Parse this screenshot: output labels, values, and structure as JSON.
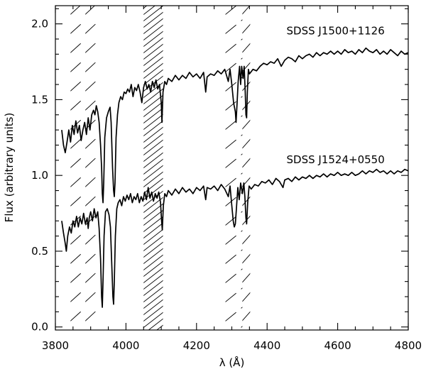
{
  "chart_data": {
    "type": "line",
    "xlabel": "λ (Å)",
    "ylabel": "Flux (arbitrary units)",
    "xlim": [
      3800,
      4800
    ],
    "ylim": [
      -0.02,
      2.12
    ],
    "xticks": [
      3800,
      4000,
      4200,
      4400,
      4600,
      4800
    ],
    "xtick_labels": [
      "3800",
      "4000",
      "4200",
      "4400",
      "4600",
      "4800"
    ],
    "yticks": [
      0.0,
      0.5,
      1.0,
      1.5,
      2.0
    ],
    "ytick_labels": [
      "0.0",
      "0.5",
      "1.0",
      "1.5",
      "2.0"
    ],
    "grid": false,
    "hatched_regions": [
      {
        "x": [
          3843,
          3880
        ],
        "hatch": "wide"
      },
      {
        "x": [
          3885,
          3920
        ],
        "hatch": "wide"
      },
      {
        "x": [
          4050,
          4105
        ],
        "hatch": "dense"
      },
      {
        "x": [
          4282,
          4330
        ],
        "hatch": "wide"
      },
      {
        "x": [
          4330,
          4352
        ],
        "hatch": "wide"
      }
    ],
    "annotations": [
      {
        "text": "SDSS J1500+1126",
        "x": 4455,
        "y": 1.93
      },
      {
        "text": "SDSS J1524+0550",
        "x": 4455,
        "y": 1.08
      }
    ],
    "series": [
      {
        "color": "#000000",
        "points": [
          [
            3818,
            1.3
          ],
          [
            3823,
            1.2
          ],
          [
            3828,
            1.15
          ],
          [
            3833,
            1.22
          ],
          [
            3838,
            1.3
          ],
          [
            3843,
            1.22
          ],
          [
            3848,
            1.33
          ],
          [
            3853,
            1.27
          ],
          [
            3858,
            1.36
          ],
          [
            3863,
            1.28
          ],
          [
            3868,
            1.33
          ],
          [
            3873,
            1.23
          ],
          [
            3878,
            1.3
          ],
          [
            3883,
            1.35
          ],
          [
            3888,
            1.27
          ],
          [
            3893,
            1.38
          ],
          [
            3898,
            1.3
          ],
          [
            3903,
            1.4
          ],
          [
            3908,
            1.43
          ],
          [
            3912,
            1.4
          ],
          [
            3916,
            1.46
          ],
          [
            3920,
            1.42
          ],
          [
            3924,
            1.35
          ],
          [
            3928,
            1.2
          ],
          [
            3931,
            1.05
          ],
          [
            3933,
            0.88
          ],
          [
            3935,
            0.82
          ],
          [
            3937,
            0.95
          ],
          [
            3940,
            1.25
          ],
          [
            3945,
            1.38
          ],
          [
            3950,
            1.42
          ],
          [
            3955,
            1.45
          ],
          [
            3958,
            1.35
          ],
          [
            3962,
            1.05
          ],
          [
            3965,
            0.9
          ],
          [
            3967,
            0.86
          ],
          [
            3969,
            0.95
          ],
          [
            3972,
            1.25
          ],
          [
            3976,
            1.4
          ],
          [
            3980,
            1.48
          ],
          [
            3985,
            1.52
          ],
          [
            3990,
            1.5
          ],
          [
            3995,
            1.55
          ],
          [
            4000,
            1.54
          ],
          [
            4005,
            1.57
          ],
          [
            4010,
            1.55
          ],
          [
            4015,
            1.6
          ],
          [
            4020,
            1.52
          ],
          [
            4025,
            1.58
          ],
          [
            4030,
            1.56
          ],
          [
            4035,
            1.6
          ],
          [
            4040,
            1.55
          ],
          [
            4045,
            1.48
          ],
          [
            4050,
            1.58
          ],
          [
            4055,
            1.62
          ],
          [
            4060,
            1.57
          ],
          [
            4065,
            1.6
          ],
          [
            4070,
            1.55
          ],
          [
            4075,
            1.62
          ],
          [
            4080,
            1.58
          ],
          [
            4085,
            1.63
          ],
          [
            4090,
            1.57
          ],
          [
            4095,
            1.6
          ],
          [
            4100,
            1.48
          ],
          [
            4102,
            1.35
          ],
          [
            4105,
            1.55
          ],
          [
            4110,
            1.62
          ],
          [
            4115,
            1.6
          ],
          [
            4120,
            1.64
          ],
          [
            4130,
            1.62
          ],
          [
            4140,
            1.66
          ],
          [
            4150,
            1.63
          ],
          [
            4160,
            1.66
          ],
          [
            4170,
            1.64
          ],
          [
            4180,
            1.68
          ],
          [
            4190,
            1.65
          ],
          [
            4200,
            1.67
          ],
          [
            4210,
            1.64
          ],
          [
            4220,
            1.68
          ],
          [
            4226,
            1.55
          ],
          [
            4230,
            1.65
          ],
          [
            4240,
            1.67
          ],
          [
            4250,
            1.66
          ],
          [
            4260,
            1.69
          ],
          [
            4270,
            1.67
          ],
          [
            4280,
            1.7
          ],
          [
            4290,
            1.62
          ],
          [
            4295,
            1.7
          ],
          [
            4300,
            1.6
          ],
          [
            4305,
            1.48
          ],
          [
            4310,
            1.42
          ],
          [
            4312,
            1.35
          ],
          [
            4315,
            1.48
          ],
          [
            4318,
            1.62
          ],
          [
            4322,
            1.72
          ],
          [
            4325,
            1.6
          ],
          [
            4328,
            1.72
          ],
          [
            4332,
            1.64
          ],
          [
            4335,
            1.72
          ],
          [
            4338,
            1.55
          ],
          [
            4340,
            1.4
          ],
          [
            4342,
            1.38
          ],
          [
            4344,
            1.55
          ],
          [
            4347,
            1.7
          ],
          [
            4350,
            1.67
          ],
          [
            4360,
            1.7
          ],
          [
            4370,
            1.69
          ],
          [
            4380,
            1.72
          ],
          [
            4390,
            1.74
          ],
          [
            4400,
            1.73
          ],
          [
            4410,
            1.75
          ],
          [
            4420,
            1.74
          ],
          [
            4430,
            1.77
          ],
          [
            4440,
            1.72
          ],
          [
            4450,
            1.76
          ],
          [
            4460,
            1.78
          ],
          [
            4470,
            1.77
          ],
          [
            4480,
            1.75
          ],
          [
            4490,
            1.79
          ],
          [
            4500,
            1.77
          ],
          [
            4510,
            1.79
          ],
          [
            4520,
            1.8
          ],
          [
            4530,
            1.78
          ],
          [
            4540,
            1.81
          ],
          [
            4550,
            1.79
          ],
          [
            4560,
            1.81
          ],
          [
            4570,
            1.8
          ],
          [
            4580,
            1.82
          ],
          [
            4590,
            1.8
          ],
          [
            4600,
            1.82
          ],
          [
            4610,
            1.8
          ],
          [
            4620,
            1.83
          ],
          [
            4630,
            1.81
          ],
          [
            4640,
            1.82
          ],
          [
            4650,
            1.8
          ],
          [
            4660,
            1.83
          ],
          [
            4670,
            1.81
          ],
          [
            4680,
            1.84
          ],
          [
            4690,
            1.82
          ],
          [
            4700,
            1.81
          ],
          [
            4710,
            1.83
          ],
          [
            4720,
            1.8
          ],
          [
            4730,
            1.82
          ],
          [
            4740,
            1.8
          ],
          [
            4750,
            1.83
          ],
          [
            4760,
            1.81
          ],
          [
            4770,
            1.79
          ],
          [
            4780,
            1.82
          ],
          [
            4790,
            1.8
          ],
          [
            4800,
            1.81
          ]
        ]
      },
      {
        "color": "#000000",
        "points": [
          [
            3818,
            0.7
          ],
          [
            3823,
            0.62
          ],
          [
            3828,
            0.55
          ],
          [
            3831,
            0.5
          ],
          [
            3835,
            0.6
          ],
          [
            3840,
            0.66
          ],
          [
            3845,
            0.62
          ],
          [
            3850,
            0.7
          ],
          [
            3855,
            0.66
          ],
          [
            3860,
            0.73
          ],
          [
            3865,
            0.66
          ],
          [
            3870,
            0.72
          ],
          [
            3875,
            0.68
          ],
          [
            3880,
            0.75
          ],
          [
            3885,
            0.68
          ],
          [
            3890,
            0.72
          ],
          [
            3893,
            0.65
          ],
          [
            3896,
            0.72
          ],
          [
            3900,
            0.76
          ],
          [
            3905,
            0.7
          ],
          [
            3910,
            0.78
          ],
          [
            3915,
            0.72
          ],
          [
            3920,
            0.76
          ],
          [
            3924,
            0.65
          ],
          [
            3928,
            0.45
          ],
          [
            3931,
            0.2
          ],
          [
            3933,
            0.13
          ],
          [
            3935,
            0.3
          ],
          [
            3938,
            0.6
          ],
          [
            3942,
            0.76
          ],
          [
            3947,
            0.78
          ],
          [
            3952,
            0.74
          ],
          [
            3956,
            0.66
          ],
          [
            3960,
            0.4
          ],
          [
            3963,
            0.2
          ],
          [
            3965,
            0.15
          ],
          [
            3967,
            0.3
          ],
          [
            3970,
            0.6
          ],
          [
            3974,
            0.78
          ],
          [
            3978,
            0.82
          ],
          [
            3983,
            0.84
          ],
          [
            3988,
            0.8
          ],
          [
            3993,
            0.86
          ],
          [
            3998,
            0.83
          ],
          [
            4003,
            0.87
          ],
          [
            4008,
            0.84
          ],
          [
            4013,
            0.88
          ],
          [
            4018,
            0.82
          ],
          [
            4023,
            0.86
          ],
          [
            4028,
            0.84
          ],
          [
            4033,
            0.88
          ],
          [
            4038,
            0.82
          ],
          [
            4043,
            0.86
          ],
          [
            4048,
            0.83
          ],
          [
            4053,
            0.89
          ],
          [
            4058,
            0.84
          ],
          [
            4063,
            0.92
          ],
          [
            4068,
            0.85
          ],
          [
            4073,
            0.89
          ],
          [
            4078,
            0.83
          ],
          [
            4083,
            0.88
          ],
          [
            4088,
            0.85
          ],
          [
            4093,
            0.89
          ],
          [
            4098,
            0.82
          ],
          [
            4101,
            0.7
          ],
          [
            4103,
            0.64
          ],
          [
            4106,
            0.8
          ],
          [
            4110,
            0.88
          ],
          [
            4115,
            0.86
          ],
          [
            4120,
            0.9
          ],
          [
            4130,
            0.87
          ],
          [
            4140,
            0.91
          ],
          [
            4150,
            0.88
          ],
          [
            4160,
            0.92
          ],
          [
            4170,
            0.89
          ],
          [
            4180,
            0.91
          ],
          [
            4190,
            0.88
          ],
          [
            4200,
            0.92
          ],
          [
            4210,
            0.9
          ],
          [
            4220,
            0.93
          ],
          [
            4226,
            0.84
          ],
          [
            4230,
            0.92
          ],
          [
            4240,
            0.91
          ],
          [
            4250,
            0.93
          ],
          [
            4260,
            0.9
          ],
          [
            4270,
            0.94
          ],
          [
            4280,
            0.91
          ],
          [
            4290,
            0.86
          ],
          [
            4295,
            0.93
          ],
          [
            4300,
            0.8
          ],
          [
            4304,
            0.7
          ],
          [
            4307,
            0.66
          ],
          [
            4310,
            0.68
          ],
          [
            4313,
            0.78
          ],
          [
            4317,
            0.92
          ],
          [
            4321,
            0.84
          ],
          [
            4325,
            0.95
          ],
          [
            4330,
            0.88
          ],
          [
            4334,
            0.95
          ],
          [
            4337,
            0.86
          ],
          [
            4340,
            0.72
          ],
          [
            4342,
            0.68
          ],
          [
            4345,
            0.82
          ],
          [
            4349,
            0.93
          ],
          [
            4355,
            0.91
          ],
          [
            4365,
            0.94
          ],
          [
            4375,
            0.93
          ],
          [
            4385,
            0.96
          ],
          [
            4395,
            0.95
          ],
          [
            4405,
            0.97
          ],
          [
            4415,
            0.94
          ],
          [
            4425,
            0.98
          ],
          [
            4435,
            0.96
          ],
          [
            4445,
            0.92
          ],
          [
            4450,
            0.97
          ],
          [
            4460,
            0.98
          ],
          [
            4470,
            0.96
          ],
          [
            4480,
            0.99
          ],
          [
            4490,
            0.97
          ],
          [
            4500,
            0.99
          ],
          [
            4510,
            0.98
          ],
          [
            4520,
            1.0
          ],
          [
            4530,
            0.98
          ],
          [
            4540,
            1.0
          ],
          [
            4550,
            0.99
          ],
          [
            4560,
            1.01
          ],
          [
            4570,
            0.99
          ],
          [
            4580,
            1.01
          ],
          [
            4590,
            1.0
          ],
          [
            4600,
            1.02
          ],
          [
            4610,
            1.0
          ],
          [
            4620,
            1.01
          ],
          [
            4630,
            1.0
          ],
          [
            4640,
            1.02
          ],
          [
            4650,
            1.0
          ],
          [
            4660,
            1.01
          ],
          [
            4670,
            1.03
          ],
          [
            4680,
            1.01
          ],
          [
            4690,
            1.03
          ],
          [
            4700,
            1.02
          ],
          [
            4710,
            1.04
          ],
          [
            4720,
            1.02
          ],
          [
            4730,
            1.03
          ],
          [
            4740,
            1.01
          ],
          [
            4750,
            1.03
          ],
          [
            4760,
            1.01
          ],
          [
            4770,
            1.03
          ],
          [
            4780,
            1.02
          ],
          [
            4790,
            1.04
          ],
          [
            4800,
            1.03
          ]
        ]
      }
    ]
  }
}
